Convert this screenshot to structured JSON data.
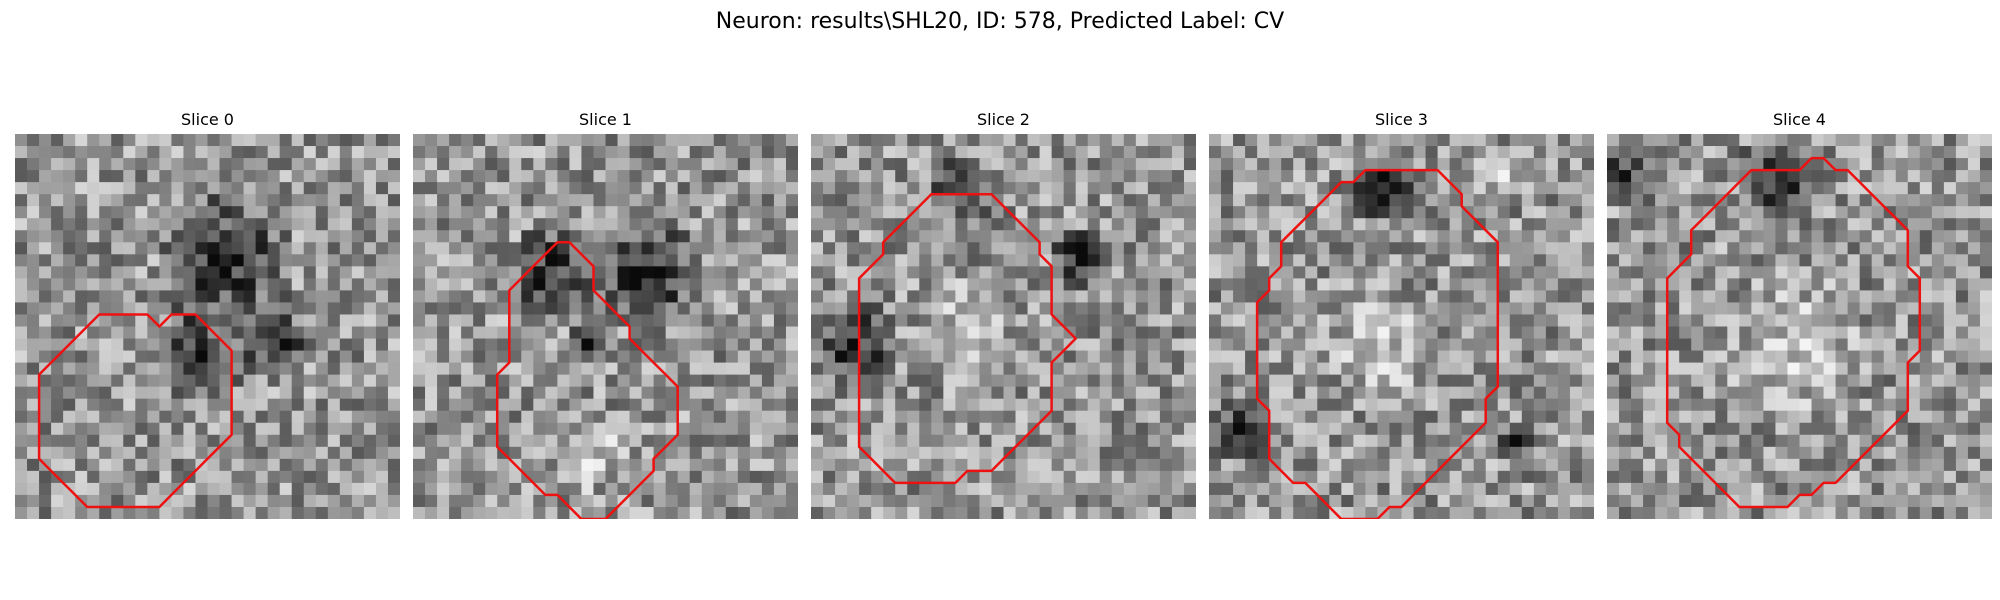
{
  "figure": {
    "title": "Neuron: results\\SHL20, ID: 578, Predicted Label: CV"
  },
  "colors": {
    "contour": "#ee1111"
  },
  "panels": [
    {
      "title": "Slice 0",
      "image": "grayscale-microscopy-tile",
      "contour": [
        [
          11,
          15
        ],
        [
          12,
          16
        ],
        [
          13,
          15
        ],
        [
          15,
          15
        ],
        [
          16,
          16
        ],
        [
          17,
          17
        ],
        [
          18,
          18
        ],
        [
          18,
          19
        ],
        [
          18,
          21
        ],
        [
          18,
          23
        ],
        [
          18,
          25
        ],
        [
          17,
          26
        ],
        [
          16,
          27
        ],
        [
          15,
          28
        ],
        [
          14,
          29
        ],
        [
          13,
          30
        ],
        [
          12,
          31
        ],
        [
          11,
          31
        ],
        [
          10,
          31
        ],
        [
          9,
          31
        ],
        [
          8,
          31
        ],
        [
          7,
          31
        ],
        [
          6,
          31
        ],
        [
          5,
          30
        ],
        [
          4,
          29
        ],
        [
          3,
          28
        ],
        [
          2,
          27
        ],
        [
          2,
          26
        ],
        [
          2,
          24
        ],
        [
          2,
          22
        ],
        [
          2,
          20
        ],
        [
          3,
          19
        ],
        [
          4,
          18
        ],
        [
          5,
          17
        ],
        [
          6,
          16
        ],
        [
          7,
          15
        ],
        [
          9,
          15
        ]
      ],
      "dark_blobs": [
        {
          "cx": 17,
          "cy": 10,
          "r": 6
        },
        {
          "cx": 15,
          "cy": 18,
          "r": 4
        },
        {
          "cx": 21,
          "cy": 17,
          "r": 3
        }
      ],
      "bright_blobs": []
    },
    {
      "title": "Slice 1",
      "image": "grayscale-microscopy-tile",
      "contour": [
        [
          12,
          9
        ],
        [
          13,
          9
        ],
        [
          14,
          10
        ],
        [
          15,
          11
        ],
        [
          15,
          13
        ],
        [
          16,
          14
        ],
        [
          17,
          15
        ],
        [
          18,
          16
        ],
        [
          18,
          17
        ],
        [
          19,
          18
        ],
        [
          20,
          19
        ],
        [
          21,
          20
        ],
        [
          22,
          21
        ],
        [
          22,
          23
        ],
        [
          22,
          25
        ],
        [
          21,
          26
        ],
        [
          20,
          27
        ],
        [
          20,
          28
        ],
        [
          19,
          29
        ],
        [
          18,
          30
        ],
        [
          17,
          31
        ],
        [
          16,
          32
        ],
        [
          15,
          32
        ],
        [
          14,
          32
        ],
        [
          13,
          31
        ],
        [
          12,
          30
        ],
        [
          11,
          30
        ],
        [
          10,
          29
        ],
        [
          9,
          28
        ],
        [
          8,
          27
        ],
        [
          7,
          26
        ],
        [
          7,
          24
        ],
        [
          7,
          22
        ],
        [
          7,
          20
        ],
        [
          8,
          19
        ],
        [
          8,
          17
        ],
        [
          8,
          15
        ],
        [
          8,
          13
        ],
        [
          9,
          12
        ],
        [
          10,
          11
        ],
        [
          11,
          10
        ]
      ],
      "dark_blobs": [
        {
          "cx": 11,
          "cy": 11,
          "r": 4
        },
        {
          "cx": 19,
          "cy": 11,
          "r": 5
        },
        {
          "cx": 14,
          "cy": 17,
          "r": 2
        }
      ],
      "bright_blobs": [
        {
          "cx": 14,
          "cy": 26,
          "r": 4
        }
      ]
    },
    {
      "title": "Slice 2",
      "image": "grayscale-microscopy-tile",
      "contour": [
        [
          10,
          5
        ],
        [
          11,
          5
        ],
        [
          13,
          5
        ],
        [
          15,
          5
        ],
        [
          16,
          6
        ],
        [
          17,
          7
        ],
        [
          18,
          8
        ],
        [
          19,
          9
        ],
        [
          19,
          10
        ],
        [
          20,
          11
        ],
        [
          20,
          13
        ],
        [
          20,
          15
        ],
        [
          21,
          16
        ],
        [
          22,
          17
        ],
        [
          21,
          18
        ],
        [
          20,
          19
        ],
        [
          20,
          21
        ],
        [
          20,
          23
        ],
        [
          19,
          24
        ],
        [
          18,
          25
        ],
        [
          17,
          26
        ],
        [
          16,
          27
        ],
        [
          15,
          28
        ],
        [
          14,
          28
        ],
        [
          13,
          28
        ],
        [
          12,
          29
        ],
        [
          10,
          29
        ],
        [
          9,
          29
        ],
        [
          8,
          29
        ],
        [
          7,
          29
        ],
        [
          6,
          28
        ],
        [
          5,
          27
        ],
        [
          4,
          26
        ],
        [
          4,
          24
        ],
        [
          4,
          22
        ],
        [
          4,
          20
        ],
        [
          4,
          18
        ],
        [
          4,
          16
        ],
        [
          4,
          14
        ],
        [
          4,
          12
        ],
        [
          5,
          11
        ],
        [
          6,
          10
        ],
        [
          6,
          9
        ],
        [
          7,
          8
        ],
        [
          8,
          7
        ],
        [
          9,
          6
        ]
      ],
      "dark_blobs": [
        {
          "cx": 3,
          "cy": 17,
          "r": 4
        },
        {
          "cx": 22,
          "cy": 10,
          "r": 3
        },
        {
          "cx": 12,
          "cy": 4,
          "r": 3
        }
      ],
      "bright_blobs": [
        {
          "cx": 12,
          "cy": 15,
          "r": 4
        }
      ]
    },
    {
      "title": "Slice 3",
      "image": "grayscale-microscopy-tile",
      "contour": [
        [
          13,
          3
        ],
        [
          15,
          3
        ],
        [
          17,
          3
        ],
        [
          19,
          3
        ],
        [
          20,
          4
        ],
        [
          21,
          5
        ],
        [
          21,
          6
        ],
        [
          22,
          7
        ],
        [
          23,
          8
        ],
        [
          24,
          9
        ],
        [
          24,
          11
        ],
        [
          24,
          13
        ],
        [
          24,
          15
        ],
        [
          24,
          17
        ],
        [
          24,
          19
        ],
        [
          24,
          21
        ],
        [
          23,
          22
        ],
        [
          23,
          24
        ],
        [
          22,
          25
        ],
        [
          21,
          26
        ],
        [
          20,
          27
        ],
        [
          19,
          28
        ],
        [
          18,
          29
        ],
        [
          17,
          30
        ],
        [
          16,
          31
        ],
        [
          15,
          31
        ],
        [
          14,
          32
        ],
        [
          13,
          32
        ],
        [
          12,
          32
        ],
        [
          11,
          32
        ],
        [
          10,
          31
        ],
        [
          9,
          30
        ],
        [
          8,
          29
        ],
        [
          7,
          29
        ],
        [
          6,
          28
        ],
        [
          5,
          27
        ],
        [
          5,
          25
        ],
        [
          5,
          23
        ],
        [
          4,
          22
        ],
        [
          4,
          20
        ],
        [
          4,
          18
        ],
        [
          4,
          16
        ],
        [
          4,
          14
        ],
        [
          5,
          13
        ],
        [
          5,
          12
        ],
        [
          6,
          11
        ],
        [
          6,
          9
        ],
        [
          7,
          8
        ],
        [
          8,
          7
        ],
        [
          9,
          6
        ],
        [
          10,
          5
        ],
        [
          11,
          4
        ],
        [
          12,
          4
        ]
      ],
      "dark_blobs": [
        {
          "cx": 14,
          "cy": 4,
          "r": 3
        },
        {
          "cx": 2,
          "cy": 24,
          "r": 3
        },
        {
          "cx": 25,
          "cy": 25,
          "r": 2
        }
      ],
      "bright_blobs": [
        {
          "cx": 14,
          "cy": 17,
          "r": 5
        },
        {
          "cx": 24,
          "cy": 3,
          "r": 3
        }
      ]
    },
    {
      "title": "Slice 4",
      "image": "grayscale-microscopy-tile",
      "contour": [
        [
          12,
          3
        ],
        [
          13,
          3
        ],
        [
          15,
          3
        ],
        [
          16,
          3
        ],
        [
          17,
          2
        ],
        [
          18,
          2
        ],
        [
          19,
          3
        ],
        [
          20,
          3
        ],
        [
          21,
          4
        ],
        [
          22,
          5
        ],
        [
          23,
          6
        ],
        [
          24,
          7
        ],
        [
          25,
          8
        ],
        [
          25,
          9
        ],
        [
          25,
          11
        ],
        [
          26,
          12
        ],
        [
          26,
          14
        ],
        [
          26,
          16
        ],
        [
          26,
          18
        ],
        [
          25,
          19
        ],
        [
          25,
          21
        ],
        [
          25,
          23
        ],
        [
          24,
          24
        ],
        [
          23,
          25
        ],
        [
          22,
          26
        ],
        [
          21,
          27
        ],
        [
          20,
          28
        ],
        [
          19,
          29
        ],
        [
          18,
          29
        ],
        [
          17,
          30
        ],
        [
          16,
          30
        ],
        [
          15,
          31
        ],
        [
          14,
          31
        ],
        [
          13,
          31
        ],
        [
          12,
          31
        ],
        [
          11,
          31
        ],
        [
          10,
          30
        ],
        [
          9,
          29
        ],
        [
          8,
          28
        ],
        [
          7,
          27
        ],
        [
          6,
          26
        ],
        [
          6,
          25
        ],
        [
          5,
          24
        ],
        [
          5,
          22
        ],
        [
          5,
          20
        ],
        [
          5,
          18
        ],
        [
          5,
          16
        ],
        [
          5,
          14
        ],
        [
          5,
          12
        ],
        [
          6,
          11
        ],
        [
          7,
          10
        ],
        [
          7,
          8
        ],
        [
          8,
          7
        ],
        [
          9,
          6
        ],
        [
          10,
          5
        ],
        [
          11,
          4
        ]
      ],
      "dark_blobs": [
        {
          "cx": 14,
          "cy": 3,
          "r": 4
        },
        {
          "cx": 1,
          "cy": 3,
          "r": 3
        }
      ],
      "bright_blobs": [
        {
          "cx": 15,
          "cy": 17,
          "r": 7
        },
        {
          "cx": 25,
          "cy": 2,
          "r": 3
        }
      ]
    }
  ]
}
